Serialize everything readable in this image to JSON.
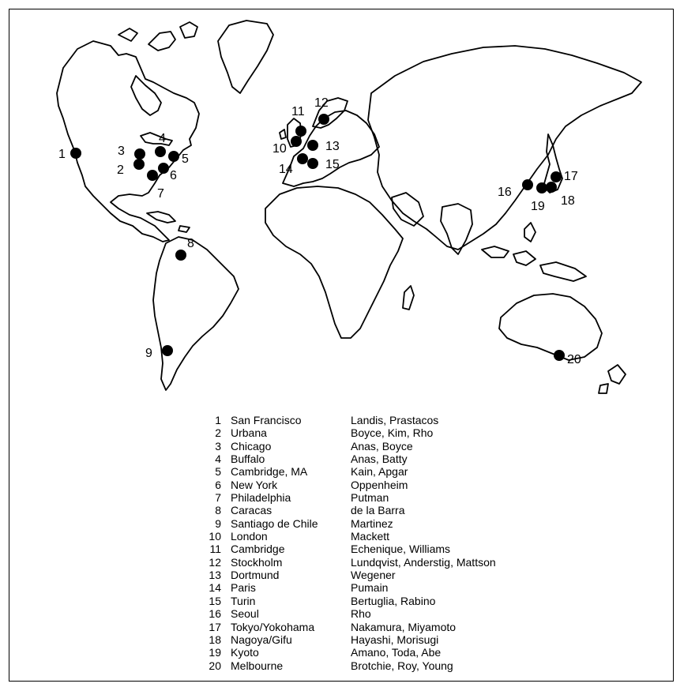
{
  "map": {
    "points": [
      {
        "id": 1,
        "label": "1",
        "lon": -122.4,
        "lat": 37.8,
        "label_side": "left"
      },
      {
        "id": 2,
        "label": "2",
        "lon": -88.2,
        "lat": 40.1,
        "label_side": "left"
      },
      {
        "id": 3,
        "label": "3",
        "lon": -87.6,
        "lat": 41.9,
        "label_side": "left"
      },
      {
        "id": 4,
        "label": "4",
        "lon": -78.9,
        "lat": 42.9,
        "label_side": "top"
      },
      {
        "id": 5,
        "label": "5",
        "lon": -71.1,
        "lat": 42.4,
        "label_side": "right"
      },
      {
        "id": 6,
        "label": "6",
        "lon": -74.0,
        "lat": 40.7,
        "label_side": "right"
      },
      {
        "id": 7,
        "label": "7",
        "lon": -75.2,
        "lat": 40.0,
        "label_side": "bottom"
      },
      {
        "id": 8,
        "label": "8",
        "lon": -66.9,
        "lat": 10.5,
        "label_side": "top-right"
      },
      {
        "id": 9,
        "label": "9",
        "lon": -70.7,
        "lat": -33.4,
        "label_side": "left"
      },
      {
        "id": 10,
        "label": "10",
        "lon": -0.1,
        "lat": 51.5,
        "label_side": "left"
      },
      {
        "id": 11,
        "label": "11",
        "lon": 0.1,
        "lat": 52.2,
        "label_side": "top"
      },
      {
        "id": 12,
        "label": "12",
        "lon": 18.1,
        "lat": 59.3,
        "label_side": "top"
      },
      {
        "id": 13,
        "label": "13",
        "lon": 7.5,
        "lat": 51.5,
        "label_side": "right"
      },
      {
        "id": 14,
        "label": "14",
        "lon": 2.35,
        "lat": 48.9,
        "label_side": "left"
      },
      {
        "id": 15,
        "label": "15",
        "lon": 7.7,
        "lat": 45.1,
        "label_side": "right"
      },
      {
        "id": 16,
        "label": "16",
        "lon": 127.0,
        "lat": 37.6,
        "label_side": "left"
      },
      {
        "id": 17,
        "label": "17",
        "lon": 139.7,
        "lat": 35.7,
        "label_side": "right"
      },
      {
        "id": 18,
        "label": "18",
        "lon": 136.9,
        "lat": 35.2,
        "label_side": "bottom-right"
      },
      {
        "id": 19,
        "label": "19",
        "lon": 135.8,
        "lat": 35.0,
        "label_side": "bottom"
      },
      {
        "id": 20,
        "label": "20",
        "lon": 145.0,
        "lat": -37.8,
        "label_side": "right"
      }
    ]
  },
  "legend": {
    "rows": [
      {
        "num": "1",
        "city": "San Francisco",
        "researchers": "Landis, Prastacos"
      },
      {
        "num": "2",
        "city": "Urbana",
        "researchers": "Boyce, Kim, Rho"
      },
      {
        "num": "3",
        "city": "Chicago",
        "researchers": "Anas, Boyce"
      },
      {
        "num": "4",
        "city": "Buffalo",
        "researchers": "Anas, Batty"
      },
      {
        "num": "5",
        "city": "Cambridge, MA",
        "researchers": "Kain, Apgar"
      },
      {
        "num": "6",
        "city": "New York",
        "researchers": "Oppenheim"
      },
      {
        "num": "7",
        "city": "Philadelphia",
        "researchers": "Putman"
      },
      {
        "num": "8",
        "city": "Caracas",
        "researchers": "de la Barra"
      },
      {
        "num": "9",
        "city": "Santiago de Chile",
        "researchers": "Martinez"
      },
      {
        "num": "10",
        "city": "London",
        "researchers": "Mackett"
      },
      {
        "num": "11",
        "city": "Cambridge",
        "researchers": "Echenique, Williams"
      },
      {
        "num": "12",
        "city": "Stockholm",
        "researchers": "Lundqvist, Anderstig, Mattson"
      },
      {
        "num": "13",
        "city": "Dortmund",
        "researchers": "Wegener"
      },
      {
        "num": "14",
        "city": "Paris",
        "researchers": "Pumain"
      },
      {
        "num": "15",
        "city": "Turin",
        "researchers": "Bertuglia, Rabino"
      },
      {
        "num": "16",
        "city": "Seoul",
        "researchers": "Rho"
      },
      {
        "num": "17",
        "city": "Tokyo/Yokohama",
        "researchers": "Nakamura, Miyamoto"
      },
      {
        "num": "18",
        "city": "Nagoya/Gifu",
        "researchers": "Hayashi, Morisugi"
      },
      {
        "num": "19",
        "city": "Kyoto",
        "researchers": "Amano, Toda, Abe"
      },
      {
        "num": "20",
        "city": "Melbourne",
        "researchers": "Brotchie, Roy, Young"
      }
    ]
  }
}
